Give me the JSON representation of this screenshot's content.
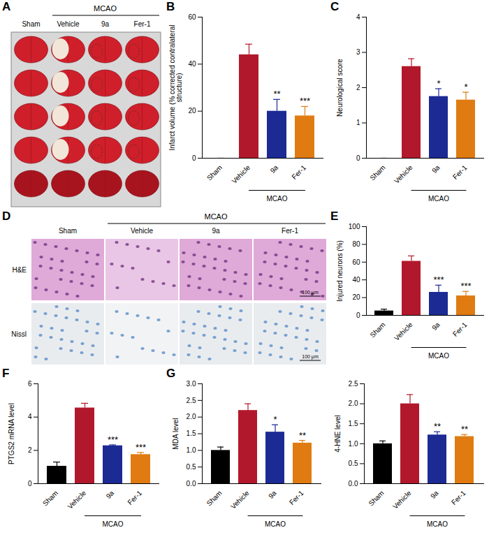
{
  "chart_data": [
    {
      "panel": "B",
      "type": "bar",
      "y_label": "Infarct volume (% corrected contralateral structure)",
      "categories": [
        "Sham",
        "Vehicle",
        "9a",
        "Fer-1"
      ],
      "values": [
        0,
        44,
        20,
        18
      ],
      "errors": [
        0,
        4.5,
        5,
        4
      ],
      "colors": [
        "#000000",
        "#b2182b",
        "#1c2a94",
        "#e07b12"
      ],
      "significance": [
        null,
        null,
        "**",
        "***"
      ],
      "group": {
        "label": "MCAO",
        "categories": [
          "Vehicle",
          "9a",
          "Fer-1"
        ]
      },
      "ylim": [
        0,
        60
      ],
      "yticks": [
        0,
        20,
        40,
        60
      ]
    },
    {
      "panel": "C",
      "type": "bar",
      "y_label": "Neurological score",
      "categories": [
        "Sham",
        "Vehicle",
        "9a",
        "Fer-1"
      ],
      "values": [
        0,
        2.6,
        1.75,
        1.65
      ],
      "errors": [
        0,
        0.22,
        0.22,
        0.22
      ],
      "colors": [
        "#000000",
        "#b2182b",
        "#1c2a94",
        "#e07b12"
      ],
      "significance": [
        null,
        null,
        "*",
        "*"
      ],
      "group": {
        "label": "MCAO",
        "categories": [
          "Vehicle",
          "9a",
          "Fer-1"
        ]
      },
      "ylim": [
        0,
        4
      ],
      "yticks": [
        0,
        1,
        2,
        3,
        4
      ]
    },
    {
      "panel": "E",
      "type": "bar",
      "y_label": "Injured neurons (%)",
      "categories": [
        "Sham",
        "Vehicle",
        "9a",
        "Fer-1"
      ],
      "values": [
        5,
        61,
        26,
        22
      ],
      "errors": [
        2,
        6,
        8,
        5
      ],
      "colors": [
        "#000000",
        "#b2182b",
        "#1c2a94",
        "#e07b12"
      ],
      "significance": [
        null,
        null,
        "***",
        "***"
      ],
      "group": {
        "label": "MCAO",
        "categories": [
          "Vehicle",
          "9a",
          "Fer-1"
        ]
      },
      "ylim": [
        0,
        100
      ],
      "yticks": [
        0,
        20,
        40,
        60,
        80,
        100
      ]
    },
    {
      "panel": "F",
      "type": "bar",
      "y_label": "PTGS2 mRNA level",
      "categories": [
        "Sham",
        "Vehicle",
        "9a",
        "Fer-1"
      ],
      "values": [
        1.05,
        4.55,
        2.28,
        1.75
      ],
      "errors": [
        0.25,
        0.28,
        0.05,
        0.12
      ],
      "colors": [
        "#000000",
        "#b2182b",
        "#1c2a94",
        "#e07b12"
      ],
      "significance": [
        null,
        null,
        "***",
        "***"
      ],
      "group": {
        "label": "MCAO",
        "categories": [
          "Vehicle",
          "9a",
          "Fer-1"
        ]
      },
      "ylim": [
        0,
        6
      ],
      "yticks": [
        0,
        2,
        4,
        6
      ]
    },
    {
      "panel": "G",
      "type": "bar",
      "y_label": "MDA level",
      "categories": [
        "Sham",
        "Vehicle",
        "9a",
        "Fer-1"
      ],
      "values": [
        1.0,
        2.2,
        1.55,
        1.22
      ],
      "errors": [
        0.1,
        0.2,
        0.22,
        0.08
      ],
      "colors": [
        "#000000",
        "#b2182b",
        "#1c2a94",
        "#e07b12"
      ],
      "significance": [
        null,
        null,
        "*",
        "**"
      ],
      "group": {
        "label": "MCAO",
        "categories": [
          "Vehicle",
          "9a",
          "Fer-1"
        ]
      },
      "ylim": [
        0,
        3
      ],
      "yticks": [
        {
          "value": 0,
          "label": "0.0"
        },
        0.5,
        {
          "value": 1,
          "label": "1.0"
        },
        1.5,
        {
          "value": 2,
          "label": "2.0"
        },
        2.5,
        {
          "value": 3,
          "label": "3.0"
        }
      ]
    },
    {
      "panel": "G",
      "type": "bar",
      "y_label": "4-HNE level",
      "categories": [
        "Sham",
        "Vehicle",
        "9a",
        "Fer-1"
      ],
      "values": [
        1.0,
        2.0,
        1.22,
        1.18
      ],
      "errors": [
        0.07,
        0.23,
        0.08,
        0.05
      ],
      "colors": [
        "#000000",
        "#b2182b",
        "#1c2a94",
        "#e07b12"
      ],
      "significance": [
        null,
        null,
        "**",
        "**"
      ],
      "group": {
        "label": "MCAO",
        "categories": [
          "Vehicle",
          "9a",
          "Fer-1"
        ]
      },
      "ylim": [
        0,
        2.5
      ],
      "yticks": [
        {
          "value": 0,
          "label": "0.0"
        },
        0.5,
        {
          "value": 1,
          "label": "1.0"
        },
        1.5,
        {
          "value": 2,
          "label": "2.0"
        },
        2.5
      ]
    }
  ],
  "image_panels": [
    {
      "panel": "A",
      "group": "MCAO",
      "columns": [
        "Sham",
        "Vehicle",
        "9a",
        "Fer-1"
      ]
    },
    {
      "panel": "D",
      "group": "MCAO",
      "columns": [
        "Sham",
        "Vehicle",
        "9a",
        "Fer-1"
      ],
      "rows": [
        "H&E",
        "Nissl"
      ],
      "scale_bar_label": "100 μm"
    }
  ]
}
